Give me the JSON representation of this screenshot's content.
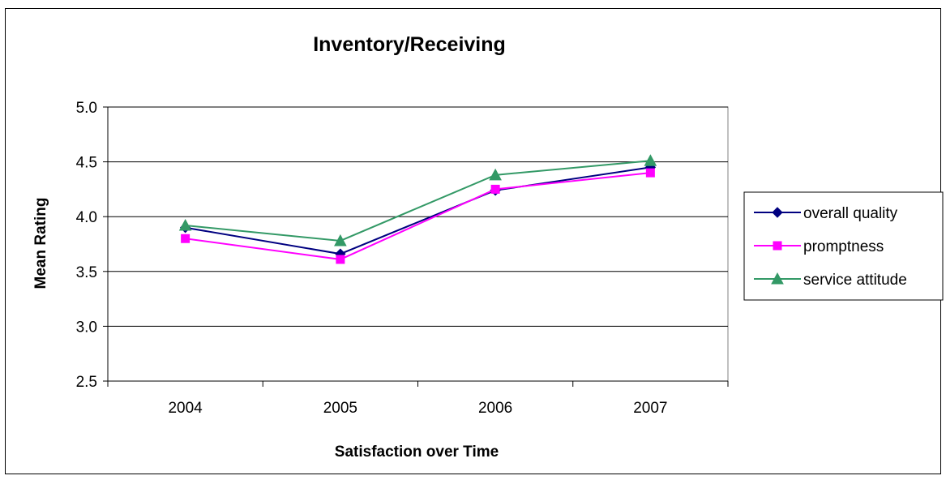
{
  "chart_data": {
    "type": "line",
    "title": "Inventory/Receiving",
    "xlabel": "Satisfaction over Time",
    "ylabel": "Mean Rating",
    "categories": [
      "2004",
      "2005",
      "2006",
      "2007"
    ],
    "ylim": [
      2.5,
      5.0
    ],
    "yticks": [
      "2.5",
      "3.0",
      "3.5",
      "4.0",
      "4.5",
      "5.0"
    ],
    "grid": true,
    "legend_position": "right",
    "series": [
      {
        "name": "overall quality",
        "values": [
          3.9,
          3.66,
          4.24,
          4.45
        ],
        "color": "#000080",
        "marker": "diamond"
      },
      {
        "name": "promptness",
        "values": [
          3.8,
          3.61,
          4.25,
          4.4
        ],
        "color": "#FF00FF",
        "marker": "square"
      },
      {
        "name": "service attitude",
        "values": [
          3.92,
          3.78,
          4.38,
          4.51
        ],
        "color": "#339966",
        "marker": "triangle"
      }
    ]
  }
}
